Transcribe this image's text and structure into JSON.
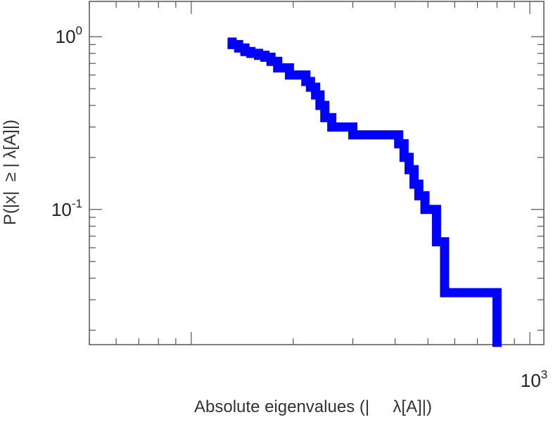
{
  "chart_data": {
    "type": "line",
    "title": "",
    "xlabel": "Absolute eigenvalues (|     λ[A]|)",
    "ylabel": "P(|x|  ≥ | λ[A]|)",
    "x_scale": "log",
    "y_scale": "log",
    "xlim": [
      50,
      1100
    ],
    "ylim": [
      0.0165,
      1.6
    ],
    "x_ticks": [
      {
        "value": 1000,
        "base": "10",
        "exp": "3"
      }
    ],
    "y_ticks": [
      {
        "value": 1,
        "base": "10",
        "exp": "0"
      },
      {
        "value": 0.1,
        "base": "10",
        "exp": "-1"
      }
    ],
    "grid": false,
    "legend": "none",
    "series": [
      {
        "color": "#0000ff",
        "x": [
          128,
          132,
          138,
          144,
          150,
          158,
          165,
          172,
          180,
          195,
          210,
          218,
          225,
          233,
          240,
          248,
          260,
          300,
          380,
          410,
          425,
          440,
          455,
          470,
          490,
          530,
          560,
          680,
          800
        ],
        "y": [
          0.93,
          0.9,
          0.86,
          0.82,
          0.8,
          0.78,
          0.76,
          0.72,
          0.66,
          0.6,
          0.6,
          0.55,
          0.51,
          0.46,
          0.4,
          0.34,
          0.3,
          0.27,
          0.27,
          0.24,
          0.2,
          0.17,
          0.14,
          0.12,
          0.1,
          0.065,
          0.033,
          0.033,
          0.016
        ],
        "step": "post"
      }
    ]
  }
}
